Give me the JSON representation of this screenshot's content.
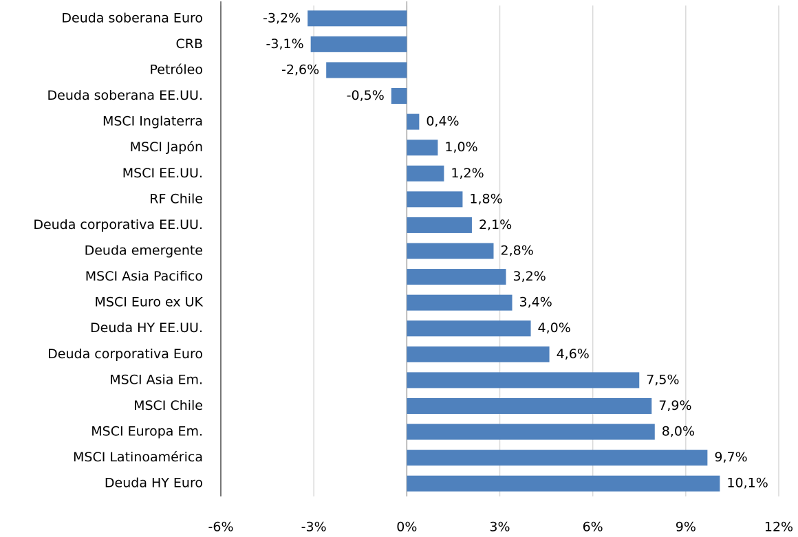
{
  "chart_data": {
    "type": "bar",
    "orientation": "horizontal",
    "categories": [
      "Deuda soberana Euro",
      "CRB",
      "Petróleo",
      "Deuda soberana EE.UU.",
      "MSCI Inglaterra",
      "MSCI Japón",
      "MSCI EE.UU.",
      "RF Chile",
      "Deuda corporativa  EE.UU.",
      "Deuda emergente",
      "MSCI Asia Pacifico",
      "MSCI Euro ex UK",
      "Deuda HY EE.UU.",
      "Deuda corporativa Euro",
      "MSCI Asia Em.",
      "MSCI Chile",
      "MSCI Europa Em.",
      "MSCI Latinoamérica",
      "Deuda HY Euro"
    ],
    "values": [
      -3.2,
      -3.1,
      -2.6,
      -0.5,
      0.4,
      1.0,
      1.2,
      1.8,
      2.1,
      2.8,
      3.2,
      3.4,
      4.0,
      4.6,
      7.5,
      7.9,
      8.0,
      9.7,
      10.1
    ],
    "value_labels": [
      "-3,2%",
      "-3,1%",
      "-2,6%",
      "-0,5%",
      "0,4%",
      "1,0%",
      "1,2%",
      "1,8%",
      "2,1%",
      "2,8%",
      "3,2%",
      "3,4%",
      "4,0%",
      "4,6%",
      "7,5%",
      "7,9%",
      "8,0%",
      "9,7%",
      "10,1%"
    ],
    "color": "#4f81bd",
    "xlim": [
      -6,
      12
    ],
    "xticks": [
      {
        "value": -6,
        "label": "-6%"
      },
      {
        "value": -3,
        "label": "-3%"
      },
      {
        "value": 0,
        "label": "0%"
      },
      {
        "value": 3,
        "label": "3%"
      },
      {
        "value": 6,
        "label": "6%"
      },
      {
        "value": 9,
        "label": "9%"
      },
      {
        "value": 12,
        "label": "12%"
      }
    ],
    "grid": true
  }
}
